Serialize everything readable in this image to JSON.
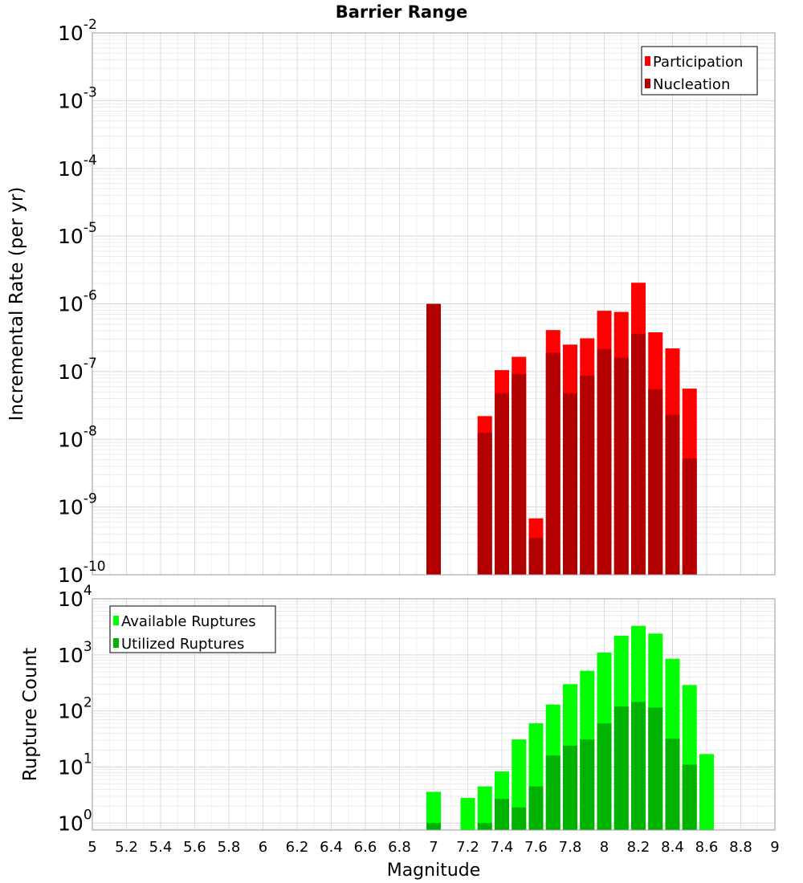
{
  "chart_data": [
    {
      "type": "bar",
      "title": "Barrier Range",
      "xlabel": "",
      "ylabel": "Incremental Rate (per yr)",
      "yscale": "log",
      "ylim": [
        1e-10,
        0.01
      ],
      "xlim": [
        5,
        9
      ],
      "y_tick_exponents": [
        "-10",
        "-9",
        "-8",
        "-7",
        "-6",
        "-5",
        "-4",
        "-3",
        "-2"
      ],
      "grid": true,
      "legend_position": "top-right",
      "x": [
        7.0,
        7.3,
        7.4,
        7.5,
        7.6,
        7.7,
        7.8,
        7.9,
        8.0,
        8.1,
        8.2,
        8.3,
        8.4,
        8.5,
        8.6
      ],
      "series": [
        {
          "name": "Participation",
          "color": "#ff0000",
          "values": [
            1e-06,
            2.2e-08,
            1.05e-07,
            1.65e-07,
            6.8e-10,
            4.1e-07,
            2.5e-07,
            3.1e-07,
            7.9e-07,
            7.6e-07,
            2.05e-06,
            3.8e-07,
            2.2e-07,
            5.6e-08,
            null
          ]
        },
        {
          "name": "Nucleation",
          "color": "#b20000",
          "values": [
            1e-06,
            1.25e-08,
            4.8e-08,
            9.2e-08,
            3.5e-10,
            1.9e-07,
            4.8e-08,
            8.7e-08,
            2.15e-07,
            1.6e-07,
            3.6e-07,
            5.5e-08,
            2.3e-08,
            5.2e-09,
            null
          ]
        }
      ]
    },
    {
      "type": "bar",
      "title": "",
      "xlabel": "Magnitude",
      "ylabel": "Rupture Count",
      "yscale": "log",
      "ylim": [
        0.75,
        10000
      ],
      "xlim": [
        5,
        9
      ],
      "y_tick_exponents": [
        "0",
        "1",
        "2",
        "3",
        "4"
      ],
      "x_ticks": [
        "5",
        "5.2",
        "5.4",
        "5.6",
        "5.8",
        "6",
        "6.2",
        "6.4",
        "6.6",
        "6.8",
        "7",
        "7.2",
        "7.4",
        "7.6",
        "7.8",
        "8",
        "8.2",
        "8.4",
        "8.6",
        "8.8",
        "9"
      ],
      "grid": true,
      "legend_position": "top-left",
      "x": [
        7.0,
        7.2,
        7.3,
        7.4,
        7.5,
        7.6,
        7.7,
        7.8,
        7.9,
        8.0,
        8.1,
        8.2,
        8.3,
        8.4,
        8.5,
        8.6
      ],
      "series": [
        {
          "name": "Available Ruptures",
          "color": "#00ff00",
          "values": [
            3.6,
            2.8,
            4.5,
            8.3,
            31,
            60,
            130,
            300,
            520,
            1100,
            2200,
            3300,
            2400,
            850,
            290,
            17
          ]
        },
        {
          "name": "Utilized Ruptures",
          "color": "#00b200",
          "values": [
            1,
            null,
            1,
            2.7,
            1.9,
            4.5,
            16,
            24,
            31,
            60,
            120,
            145,
            115,
            32,
            11,
            null
          ]
        }
      ]
    }
  ]
}
